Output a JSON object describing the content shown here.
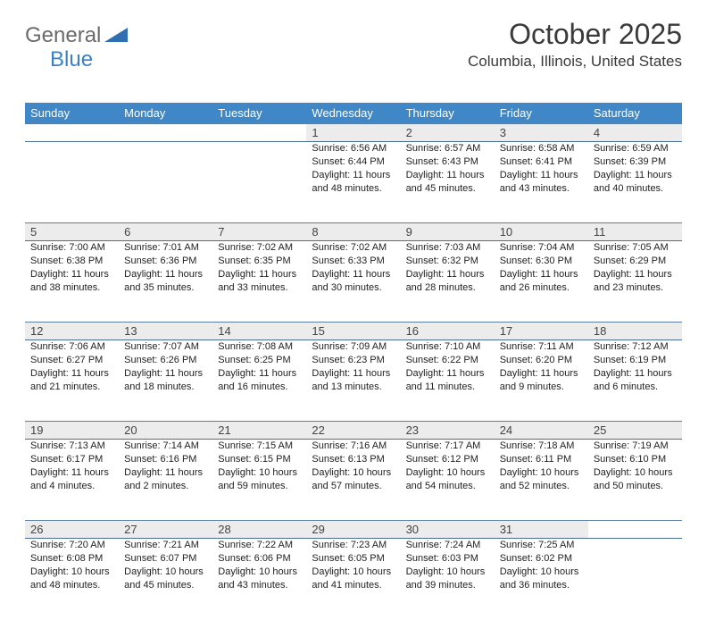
{
  "logo": {
    "general": "General",
    "blue": "Blue"
  },
  "title": "October 2025",
  "location": "Columbia, Illinois, United States",
  "colors": {
    "header_bg": "#3f87c6",
    "header_text": "#ffffff",
    "daynum_bg": "#ececec",
    "row_border": "#4a6f94",
    "logo_gray": "#6a6a6a",
    "logo_blue": "#3b82c4",
    "body_text": "#222222"
  },
  "day_headers": [
    "Sunday",
    "Monday",
    "Tuesday",
    "Wednesday",
    "Thursday",
    "Friday",
    "Saturday"
  ],
  "weeks": [
    [
      null,
      null,
      null,
      {
        "n": "1",
        "sr": "6:56 AM",
        "ss": "6:44 PM",
        "dl": "11 hours and 48 minutes."
      },
      {
        "n": "2",
        "sr": "6:57 AM",
        "ss": "6:43 PM",
        "dl": "11 hours and 45 minutes."
      },
      {
        "n": "3",
        "sr": "6:58 AM",
        "ss": "6:41 PM",
        "dl": "11 hours and 43 minutes."
      },
      {
        "n": "4",
        "sr": "6:59 AM",
        "ss": "6:39 PM",
        "dl": "11 hours and 40 minutes."
      }
    ],
    [
      {
        "n": "5",
        "sr": "7:00 AM",
        "ss": "6:38 PM",
        "dl": "11 hours and 38 minutes."
      },
      {
        "n": "6",
        "sr": "7:01 AM",
        "ss": "6:36 PM",
        "dl": "11 hours and 35 minutes."
      },
      {
        "n": "7",
        "sr": "7:02 AM",
        "ss": "6:35 PM",
        "dl": "11 hours and 33 minutes."
      },
      {
        "n": "8",
        "sr": "7:02 AM",
        "ss": "6:33 PM",
        "dl": "11 hours and 30 minutes."
      },
      {
        "n": "9",
        "sr": "7:03 AM",
        "ss": "6:32 PM",
        "dl": "11 hours and 28 minutes."
      },
      {
        "n": "10",
        "sr": "7:04 AM",
        "ss": "6:30 PM",
        "dl": "11 hours and 26 minutes."
      },
      {
        "n": "11",
        "sr": "7:05 AM",
        "ss": "6:29 PM",
        "dl": "11 hours and 23 minutes."
      }
    ],
    [
      {
        "n": "12",
        "sr": "7:06 AM",
        "ss": "6:27 PM",
        "dl": "11 hours and 21 minutes."
      },
      {
        "n": "13",
        "sr": "7:07 AM",
        "ss": "6:26 PM",
        "dl": "11 hours and 18 minutes."
      },
      {
        "n": "14",
        "sr": "7:08 AM",
        "ss": "6:25 PM",
        "dl": "11 hours and 16 minutes."
      },
      {
        "n": "15",
        "sr": "7:09 AM",
        "ss": "6:23 PM",
        "dl": "11 hours and 13 minutes."
      },
      {
        "n": "16",
        "sr": "7:10 AM",
        "ss": "6:22 PM",
        "dl": "11 hours and 11 minutes."
      },
      {
        "n": "17",
        "sr": "7:11 AM",
        "ss": "6:20 PM",
        "dl": "11 hours and 9 minutes."
      },
      {
        "n": "18",
        "sr": "7:12 AM",
        "ss": "6:19 PM",
        "dl": "11 hours and 6 minutes."
      }
    ],
    [
      {
        "n": "19",
        "sr": "7:13 AM",
        "ss": "6:17 PM",
        "dl": "11 hours and 4 minutes."
      },
      {
        "n": "20",
        "sr": "7:14 AM",
        "ss": "6:16 PM",
        "dl": "11 hours and 2 minutes."
      },
      {
        "n": "21",
        "sr": "7:15 AM",
        "ss": "6:15 PM",
        "dl": "10 hours and 59 minutes."
      },
      {
        "n": "22",
        "sr": "7:16 AM",
        "ss": "6:13 PM",
        "dl": "10 hours and 57 minutes."
      },
      {
        "n": "23",
        "sr": "7:17 AM",
        "ss": "6:12 PM",
        "dl": "10 hours and 54 minutes."
      },
      {
        "n": "24",
        "sr": "7:18 AM",
        "ss": "6:11 PM",
        "dl": "10 hours and 52 minutes."
      },
      {
        "n": "25",
        "sr": "7:19 AM",
        "ss": "6:10 PM",
        "dl": "10 hours and 50 minutes."
      }
    ],
    [
      {
        "n": "26",
        "sr": "7:20 AM",
        "ss": "6:08 PM",
        "dl": "10 hours and 48 minutes."
      },
      {
        "n": "27",
        "sr": "7:21 AM",
        "ss": "6:07 PM",
        "dl": "10 hours and 45 minutes."
      },
      {
        "n": "28",
        "sr": "7:22 AM",
        "ss": "6:06 PM",
        "dl": "10 hours and 43 minutes."
      },
      {
        "n": "29",
        "sr": "7:23 AM",
        "ss": "6:05 PM",
        "dl": "10 hours and 41 minutes."
      },
      {
        "n": "30",
        "sr": "7:24 AM",
        "ss": "6:03 PM",
        "dl": "10 hours and 39 minutes."
      },
      {
        "n": "31",
        "sr": "7:25 AM",
        "ss": "6:02 PM",
        "dl": "10 hours and 36 minutes."
      },
      null
    ]
  ],
  "labels": {
    "sunrise": "Sunrise: ",
    "sunset": "Sunset: ",
    "daylight": "Daylight: "
  }
}
